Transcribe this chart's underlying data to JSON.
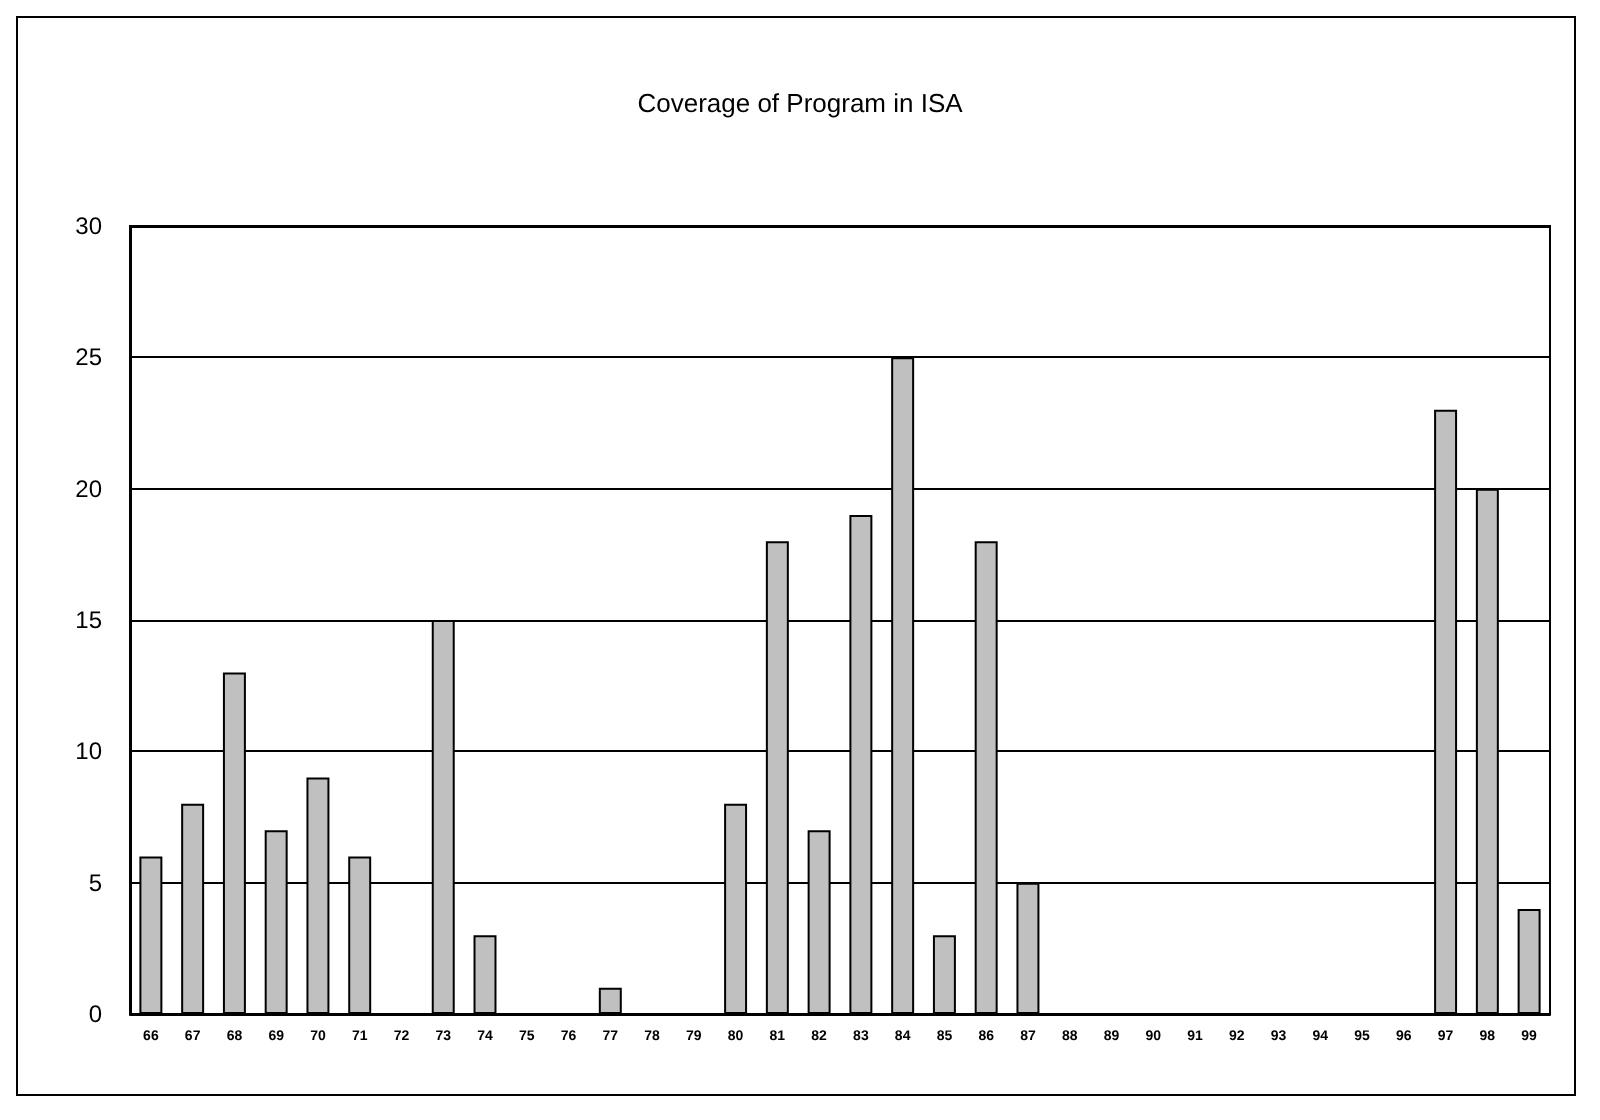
{
  "chart_data": {
    "type": "bar",
    "title": "Coverage of Program in ISA",
    "categories": [
      "66",
      "67",
      "68",
      "69",
      "70",
      "71",
      "72",
      "73",
      "74",
      "75",
      "76",
      "77",
      "78",
      "79",
      "80",
      "81",
      "82",
      "83",
      "84",
      "85",
      "86",
      "87",
      "88",
      "89",
      "90",
      "91",
      "92",
      "93",
      "94",
      "95",
      "96",
      "97",
      "98",
      "99"
    ],
    "values": [
      6,
      8,
      13,
      7,
      9,
      6,
      0,
      15,
      3,
      0,
      0,
      1,
      0,
      0,
      8,
      18,
      7,
      19,
      25,
      3,
      18,
      5,
      0,
      0,
      0,
      0,
      0,
      0,
      0,
      0,
      0,
      23,
      20,
      4
    ],
    "color": "#c0c0c0",
    "ylim": [
      0,
      30
    ],
    "yticks": [
      0,
      5,
      10,
      15,
      20,
      25,
      30
    ],
    "grid": "y"
  }
}
